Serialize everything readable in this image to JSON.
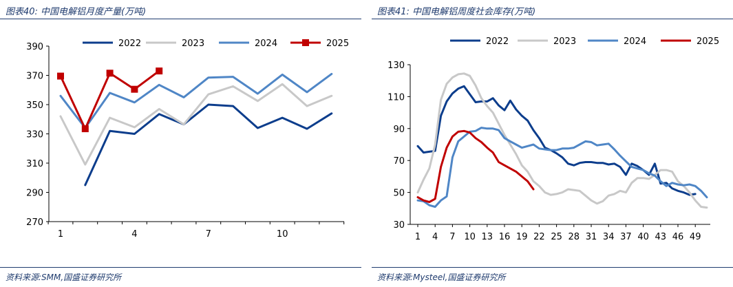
{
  "left": {
    "title": "图表40:  中国电解铝月度产量(万吨)",
    "source": "资料来源:SMM,国盛证券研究所",
    "chart_data": {
      "type": "line",
      "title": "中国电解铝月度产量(万吨)",
      "ylim": [
        270,
        390
      ],
      "yticks": [
        "270",
        "290",
        "310",
        "330",
        "350",
        "370",
        "390"
      ],
      "xlim": [
        1,
        12
      ],
      "xticks": [
        "1",
        "4",
        "7",
        "10"
      ],
      "xtick_values": [
        1,
        4,
        7,
        10
      ],
      "series": [
        {
          "name": "2022",
          "color": "#0c3d8c",
          "marker": "none",
          "x": [
            2,
            3,
            4,
            5,
            6,
            7,
            8,
            9,
            10,
            11,
            12
          ],
          "values": [
            295,
            332,
            330,
            343.5,
            336.5,
            350,
            349,
            334,
            341,
            333.5,
            344
          ]
        },
        {
          "name": "2023",
          "color": "#c8c8c8",
          "marker": "none",
          "x": [
            1,
            2,
            3,
            4,
            5,
            6,
            7,
            8,
            9,
            10,
            11,
            12
          ],
          "values": [
            342,
            309,
            341,
            334.5,
            347,
            336.5,
            357,
            362.5,
            352.5,
            364,
            349,
            356
          ]
        },
        {
          "name": "2024",
          "color": "#4f86c6",
          "marker": "none",
          "x": [
            1,
            2,
            3,
            4,
            5,
            6,
            7,
            8,
            9,
            10,
            11,
            12
          ],
          "values": [
            356,
            334,
            358,
            351.5,
            363.5,
            355,
            368.5,
            369,
            357.5,
            370.5,
            358.5,
            371
          ]
        },
        {
          "name": "2025",
          "color": "#c00000",
          "marker": "square",
          "x": [
            1,
            2,
            3,
            4,
            5
          ],
          "values": [
            369.5,
            333.5,
            371.5,
            360.5,
            373
          ]
        }
      ]
    }
  },
  "right": {
    "title": "图表41:  中国电解铝周度社会库存(万吨)",
    "source": "资料来源:Mysteel,国盛证券研究所",
    "chart_data": {
      "type": "line",
      "title": "中国电解铝周度社会库存(万吨)",
      "ylim": [
        30,
        130
      ],
      "yticks": [
        "30",
        "50",
        "70",
        "90",
        "110",
        "130"
      ],
      "xlim": [
        1,
        51
      ],
      "xticks": [
        "1",
        "4",
        "7",
        "10",
        "13",
        "16",
        "19",
        "22",
        "25",
        "28",
        "31",
        "34",
        "37",
        "40",
        "43",
        "46",
        "49"
      ],
      "xtick_values": [
        1,
        4,
        7,
        10,
        13,
        16,
        19,
        22,
        25,
        28,
        31,
        34,
        37,
        40,
        43,
        46,
        49
      ],
      "series": [
        {
          "name": "2022",
          "color": "#0c3d8c",
          "x": [
            1,
            2,
            3,
            4,
            5,
            6,
            7,
            8,
            9,
            10,
            11,
            12,
            13,
            14,
            15,
            16,
            17,
            18,
            19,
            20,
            21,
            22,
            23,
            24,
            25,
            26,
            27,
            28,
            29,
            30,
            31,
            32,
            33,
            34,
            35,
            36,
            37,
            38,
            39,
            40,
            41,
            42,
            43,
            44,
            45,
            46,
            47,
            48,
            49
          ],
          "values": [
            79,
            75,
            75.5,
            76,
            98,
            107,
            112,
            115,
            116.5,
            111.5,
            106.5,
            107,
            107,
            109,
            104.5,
            101.5,
            107.5,
            102,
            98,
            95,
            89,
            84,
            78,
            76.5,
            74.5,
            72,
            68,
            67,
            68.5,
            69,
            69,
            68.5,
            68.5,
            67.5,
            68,
            66,
            61,
            68,
            66.5,
            64,
            61,
            68,
            55.5,
            56,
            52.5,
            51,
            50,
            48.5,
            49
          ]
        },
        {
          "name": "2023",
          "color": "#c8c8c8",
          "x": [
            1,
            2,
            3,
            4,
            5,
            6,
            7,
            8,
            9,
            10,
            11,
            12,
            13,
            14,
            15,
            16,
            17,
            18,
            19,
            20,
            21,
            22,
            23,
            24,
            25,
            26,
            27,
            28,
            29,
            30,
            31,
            32,
            33,
            34,
            35,
            36,
            37,
            38,
            39,
            40,
            41,
            42,
            43,
            44,
            45,
            46,
            47,
            48,
            49,
            50,
            51
          ],
          "values": [
            50,
            58,
            65,
            80,
            108,
            118,
            122,
            124,
            124.5,
            123,
            117,
            109,
            104,
            100,
            93,
            86,
            80,
            74,
            67,
            63,
            57,
            54,
            50,
            48.5,
            49,
            50,
            52,
            51.5,
            51,
            48,
            45,
            43,
            44.5,
            48,
            49,
            51,
            50,
            56,
            59,
            59,
            58.5,
            61,
            64,
            64,
            63,
            57,
            54,
            50,
            45,
            41,
            40.5
          ]
        },
        {
          "name": "2024",
          "color": "#4f86c6",
          "x": [
            1,
            2,
            3,
            4,
            5,
            6,
            7,
            8,
            9,
            10,
            11,
            12,
            13,
            14,
            15,
            16,
            17,
            18,
            19,
            20,
            21,
            22,
            23,
            24,
            25,
            26,
            27,
            28,
            29,
            30,
            31,
            32,
            33,
            34,
            35,
            36,
            37,
            38,
            39,
            40,
            41,
            42,
            43,
            44,
            45,
            46,
            47,
            48,
            49,
            50,
            51
          ],
          "values": [
            45,
            44.5,
            42,
            41,
            45,
            47.5,
            72,
            82,
            85,
            88,
            88.5,
            90.5,
            90,
            90,
            89,
            84,
            82,
            80,
            78,
            79,
            80,
            77.5,
            77,
            76.5,
            76.5,
            77.5,
            77.5,
            78,
            80,
            82,
            81.5,
            79.5,
            80,
            80.5,
            77,
            73,
            69.5,
            66,
            65,
            64,
            62,
            60.5,
            57,
            54,
            56,
            55,
            54.5,
            55,
            54,
            51,
            47
          ]
        },
        {
          "name": "2025",
          "color": "#c00000",
          "x": [
            1,
            2,
            3,
            4,
            5,
            6,
            7,
            8,
            9,
            10,
            11,
            12,
            13,
            14,
            15,
            16,
            17,
            18,
            19,
            20,
            21
          ],
          "values": [
            47,
            45,
            44,
            46,
            66,
            78,
            85,
            88,
            88.5,
            87.5,
            84,
            81.5,
            78,
            75,
            69,
            67,
            65,
            63,
            60,
            57,
            52
          ]
        }
      ]
    }
  }
}
